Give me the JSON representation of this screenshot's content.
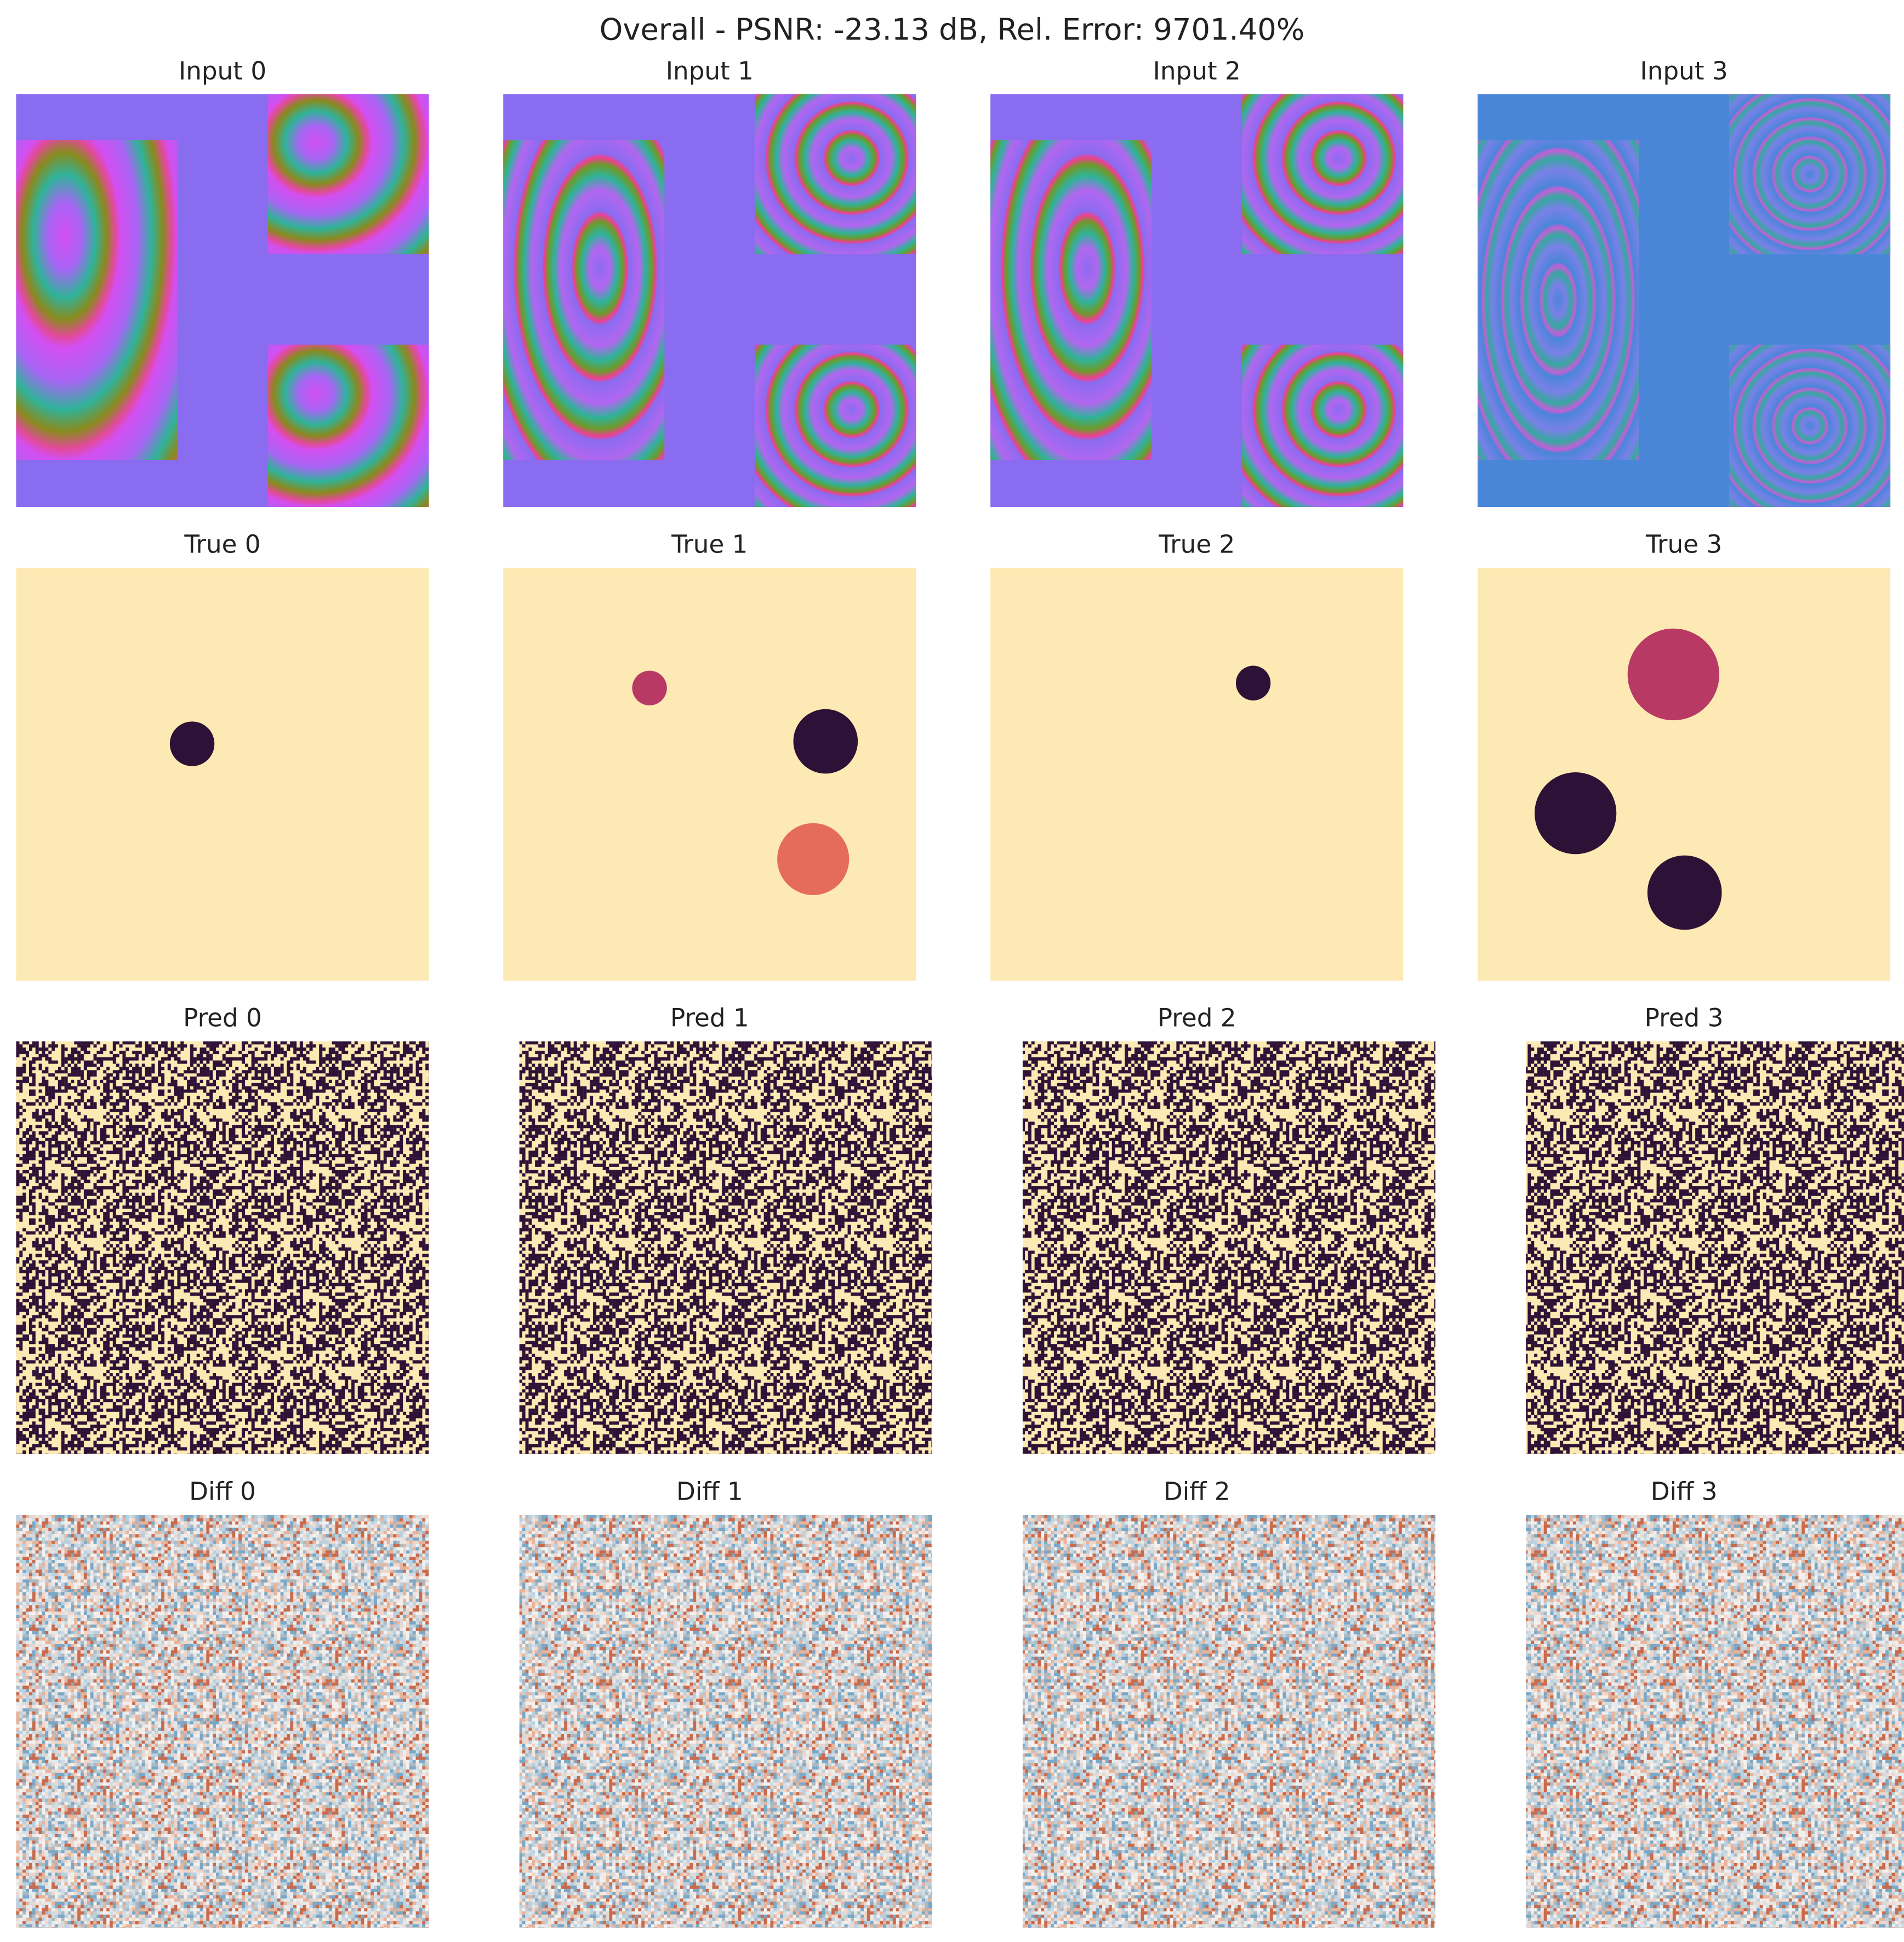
{
  "title": "Overall - PSNR: -23.13 dB, Rel. Error: 9701.40%",
  "rows": [
    [
      "Input 0",
      "Input 1",
      "Input 2",
      "Input 3"
    ],
    [
      "True 0",
      "True 1",
      "True 2",
      "True 3"
    ],
    [
      "Pred 0",
      "Pred 1",
      "Pred 2",
      "Pred 3"
    ],
    [
      "Diff 0",
      "Diff 1",
      "Diff 2",
      "Diff 3"
    ]
  ]
}
